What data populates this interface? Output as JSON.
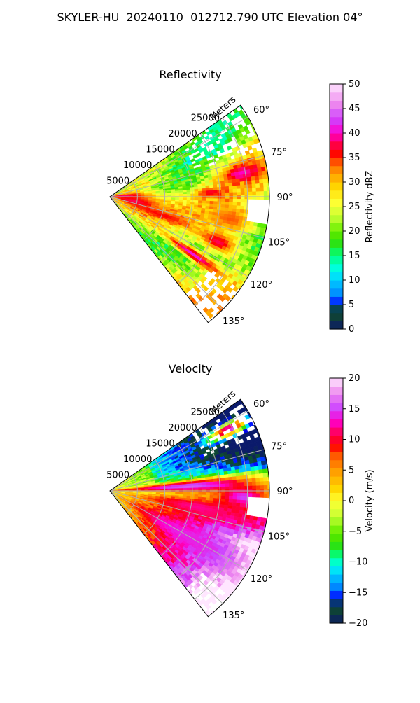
{
  "figure": {
    "title": "SKYLER-HU  20240110  012712.790 UTC Elevation 04°"
  },
  "colors": {
    "grid": "#b0b0b0",
    "reflectivity_scale": [
      {
        "v": 0,
        "c": "#0b1a6b"
      },
      {
        "v": 2,
        "c": "#103a3a"
      },
      {
        "v": 4,
        "c": "#0a5030"
      },
      {
        "v": 5,
        "c": "#0000ff"
      },
      {
        "v": 7,
        "c": "#0088ff"
      },
      {
        "v": 10,
        "c": "#00ccff"
      },
      {
        "v": 12,
        "c": "#00ffee"
      },
      {
        "v": 15,
        "c": "#00ff80"
      },
      {
        "v": 18,
        "c": "#33dd00"
      },
      {
        "v": 20,
        "c": "#66ee00"
      },
      {
        "v": 23,
        "c": "#c8ff33"
      },
      {
        "v": 26,
        "c": "#ffff33"
      },
      {
        "v": 29,
        "c": "#ffd700"
      },
      {
        "v": 32,
        "c": "#ff9900"
      },
      {
        "v": 34,
        "c": "#ff5500"
      },
      {
        "v": 36,
        "c": "#ff0000"
      },
      {
        "v": 38,
        "c": "#ff0055"
      },
      {
        "v": 40,
        "c": "#ff00cc"
      },
      {
        "v": 43,
        "c": "#cc44ff"
      },
      {
        "v": 46,
        "c": "#ee88ee"
      },
      {
        "v": 50,
        "c": "#ffe6ff"
      }
    ],
    "velocity_scale": [
      {
        "v": -20,
        "c": "#0b1a6b"
      },
      {
        "v": -18.5,
        "c": "#103a3a"
      },
      {
        "v": -17,
        "c": "#0a5030"
      },
      {
        "v": -16,
        "c": "#0000ff"
      },
      {
        "v": -14,
        "c": "#0088ff"
      },
      {
        "v": -12,
        "c": "#00ccff"
      },
      {
        "v": -10.5,
        "c": "#00ffee"
      },
      {
        "v": -9,
        "c": "#00ff80"
      },
      {
        "v": -7,
        "c": "#33dd00"
      },
      {
        "v": -5,
        "c": "#66ee00"
      },
      {
        "v": -2.5,
        "c": "#c8ff33"
      },
      {
        "v": 0,
        "c": "#ffff33"
      },
      {
        "v": 2,
        "c": "#ffd700"
      },
      {
        "v": 5,
        "c": "#ff9900"
      },
      {
        "v": 7.5,
        "c": "#ff5500"
      },
      {
        "v": 9,
        "c": "#ff0000"
      },
      {
        "v": 11,
        "c": "#ff0055"
      },
      {
        "v": 13,
        "c": "#ff00cc"
      },
      {
        "v": 15,
        "c": "#cc44ff"
      },
      {
        "v": 17.5,
        "c": "#ee88ee"
      },
      {
        "v": 20,
        "c": "#ffe6ff"
      }
    ]
  },
  "chart_data": [
    {
      "type": "heatmap",
      "projection": "polar",
      "title": "Reflectivity",
      "radial_label": "Meters",
      "r_ticks": [
        "5000",
        "10000",
        "15000",
        "20000",
        "25000"
      ],
      "r_tick_values": [
        5000,
        10000,
        15000,
        20000,
        25000
      ],
      "r_max": 29000,
      "theta_ticks": [
        "60°",
        "75°",
        "90°",
        "105°",
        "120°",
        "135°"
      ],
      "theta_tick_values": [
        60,
        75,
        90,
        105,
        120,
        135
      ],
      "theta_range": [
        55,
        142
      ],
      "grid": true,
      "colorbar": {
        "label": "Reflectivity dBZ",
        "range": [
          0,
          50
        ],
        "ticks": [
          "0",
          "5",
          "10",
          "15",
          "20",
          "25",
          "30",
          "35",
          "40",
          "45",
          "50"
        ]
      },
      "features": [
        {
          "az": 87,
          "r_km": 2,
          "w_deg": 8,
          "w_km": 5,
          "value": 39
        },
        {
          "az": 100,
          "r_km": 4,
          "w_deg": 14,
          "w_km": 6,
          "value": 38
        },
        {
          "az": 109,
          "r_km": 10,
          "w_deg": 4,
          "w_km": 6,
          "value": 36
        },
        {
          "az": 124,
          "r_km": 18,
          "w_deg": 3,
          "w_km": 7,
          "value": 41
        },
        {
          "az": 112,
          "r_km": 21,
          "w_deg": 5,
          "w_km": 4,
          "value": 38
        },
        {
          "az": 79,
          "r_km": 24,
          "w_deg": 4,
          "w_km": 4,
          "value": 40
        },
        {
          "az": 87,
          "r_km": 18,
          "w_deg": 3,
          "w_km": 3,
          "value": 37
        },
        {
          "az": 100,
          "r_km": 22,
          "w_deg": 6,
          "w_km": 4,
          "value": 34
        }
      ]
    },
    {
      "type": "heatmap",
      "projection": "polar",
      "title": "Velocity",
      "radial_label": "Meters",
      "r_ticks": [
        "5000",
        "10000",
        "15000",
        "20000",
        "25000"
      ],
      "r_tick_values": [
        5000,
        10000,
        15000,
        20000,
        25000
      ],
      "r_max": 29000,
      "theta_ticks": [
        "60°",
        "75°",
        "90°",
        "105°",
        "120°",
        "135°"
      ],
      "theta_tick_values": [
        60,
        75,
        90,
        105,
        120,
        135
      ],
      "theta_range": [
        55,
        142
      ],
      "grid": true,
      "colorbar": {
        "label": "Velocity (m/s)",
        "range": [
          -20,
          20
        ],
        "ticks": [
          "−20",
          "−15",
          "−10",
          "−5",
          "0",
          "5",
          "10",
          "15",
          "20"
        ]
      },
      "features": [
        {
          "az": 86,
          "r_km": 14,
          "w_deg": 4,
          "w_km": 14,
          "value": 16
        },
        {
          "az": 100,
          "r_km": 16,
          "w_deg": 6,
          "w_km": 10,
          "value": 12
        },
        {
          "az": 120,
          "r_km": 16,
          "w_deg": 8,
          "w_km": 12,
          "value": 14
        },
        {
          "az": 62,
          "r_km": 24,
          "w_deg": 3,
          "w_km": 4,
          "value": 16
        },
        {
          "az": 92,
          "r_km": 24,
          "w_deg": 4,
          "w_km": 4,
          "value": 15
        }
      ]
    }
  ]
}
